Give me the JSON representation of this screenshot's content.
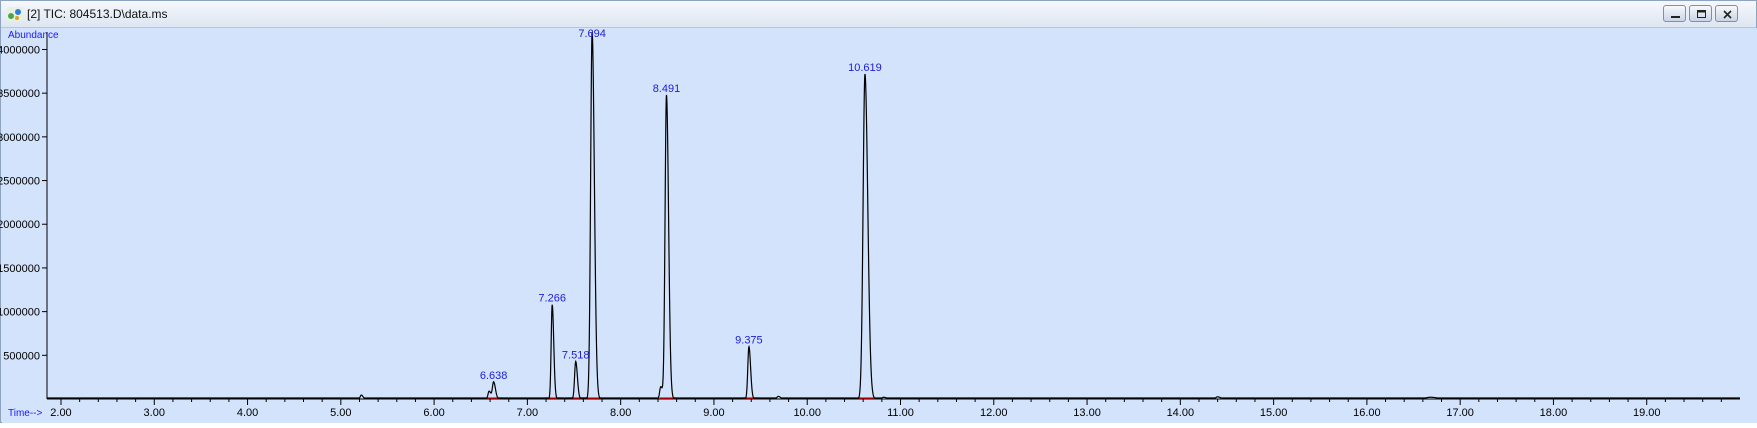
{
  "window": {
    "title": "[2] TIC: 804513.D\\data.ms",
    "icon": "chromatogram-app-icon",
    "controls": [
      "minimize-icon",
      "restore-icon",
      "close-icon"
    ]
  },
  "chart_data": {
    "type": "line",
    "ylabel": "Abundance",
    "xlabel": "Time-->",
    "xlim": [
      1.85,
      20.0
    ],
    "ylim": [
      0,
      4200000
    ],
    "x_ticks": [
      "2.00",
      "3.00",
      "4.00",
      "5.00",
      "6.00",
      "7.00",
      "8.00",
      "9.00",
      "10.00",
      "11.00",
      "12.00",
      "13.00",
      "14.00",
      "15.00",
      "16.00",
      "17.00",
      "18.00",
      "19.00"
    ],
    "y_ticks": [
      "500000",
      "1000000",
      "1500000",
      "2000000",
      "2500000",
      "3000000",
      "3500000",
      "4000000"
    ],
    "grid": false,
    "line_color": "#000000",
    "label_color": "#1c1cd8",
    "baseline_color": "#ff0000",
    "peaks": [
      {
        "rt": 5.22,
        "height": 45000,
        "width": 0.012
      },
      {
        "rt": 6.59,
        "height": 90000,
        "width": 0.012
      },
      {
        "rt": 6.638,
        "height": 195000,
        "width": 0.013,
        "label": "6.638"
      },
      {
        "rt": 7.266,
        "height": 1080000,
        "width": 0.011,
        "label": "7.266"
      },
      {
        "rt": 7.518,
        "height": 430000,
        "width": 0.012,
        "label": "7.518"
      },
      {
        "rt": 7.694,
        "height": 4200000,
        "width": 0.016,
        "label": "7.694"
      },
      {
        "rt": 8.43,
        "height": 140000,
        "width": 0.012
      },
      {
        "rt": 8.491,
        "height": 3480000,
        "width": 0.015,
        "label": "8.491"
      },
      {
        "rt": 9.375,
        "height": 600000,
        "width": 0.012,
        "label": "9.375"
      },
      {
        "rt": 9.69,
        "height": 30000,
        "width": 0.015
      },
      {
        "rt": 10.619,
        "height": 3720000,
        "width": 0.02,
        "label": "10.619"
      },
      {
        "rt": 10.82,
        "height": 20000,
        "width": 0.02
      },
      {
        "rt": 14.4,
        "height": 25000,
        "width": 0.02
      },
      {
        "rt": 16.68,
        "height": 20000,
        "width": 0.05
      }
    ]
  }
}
